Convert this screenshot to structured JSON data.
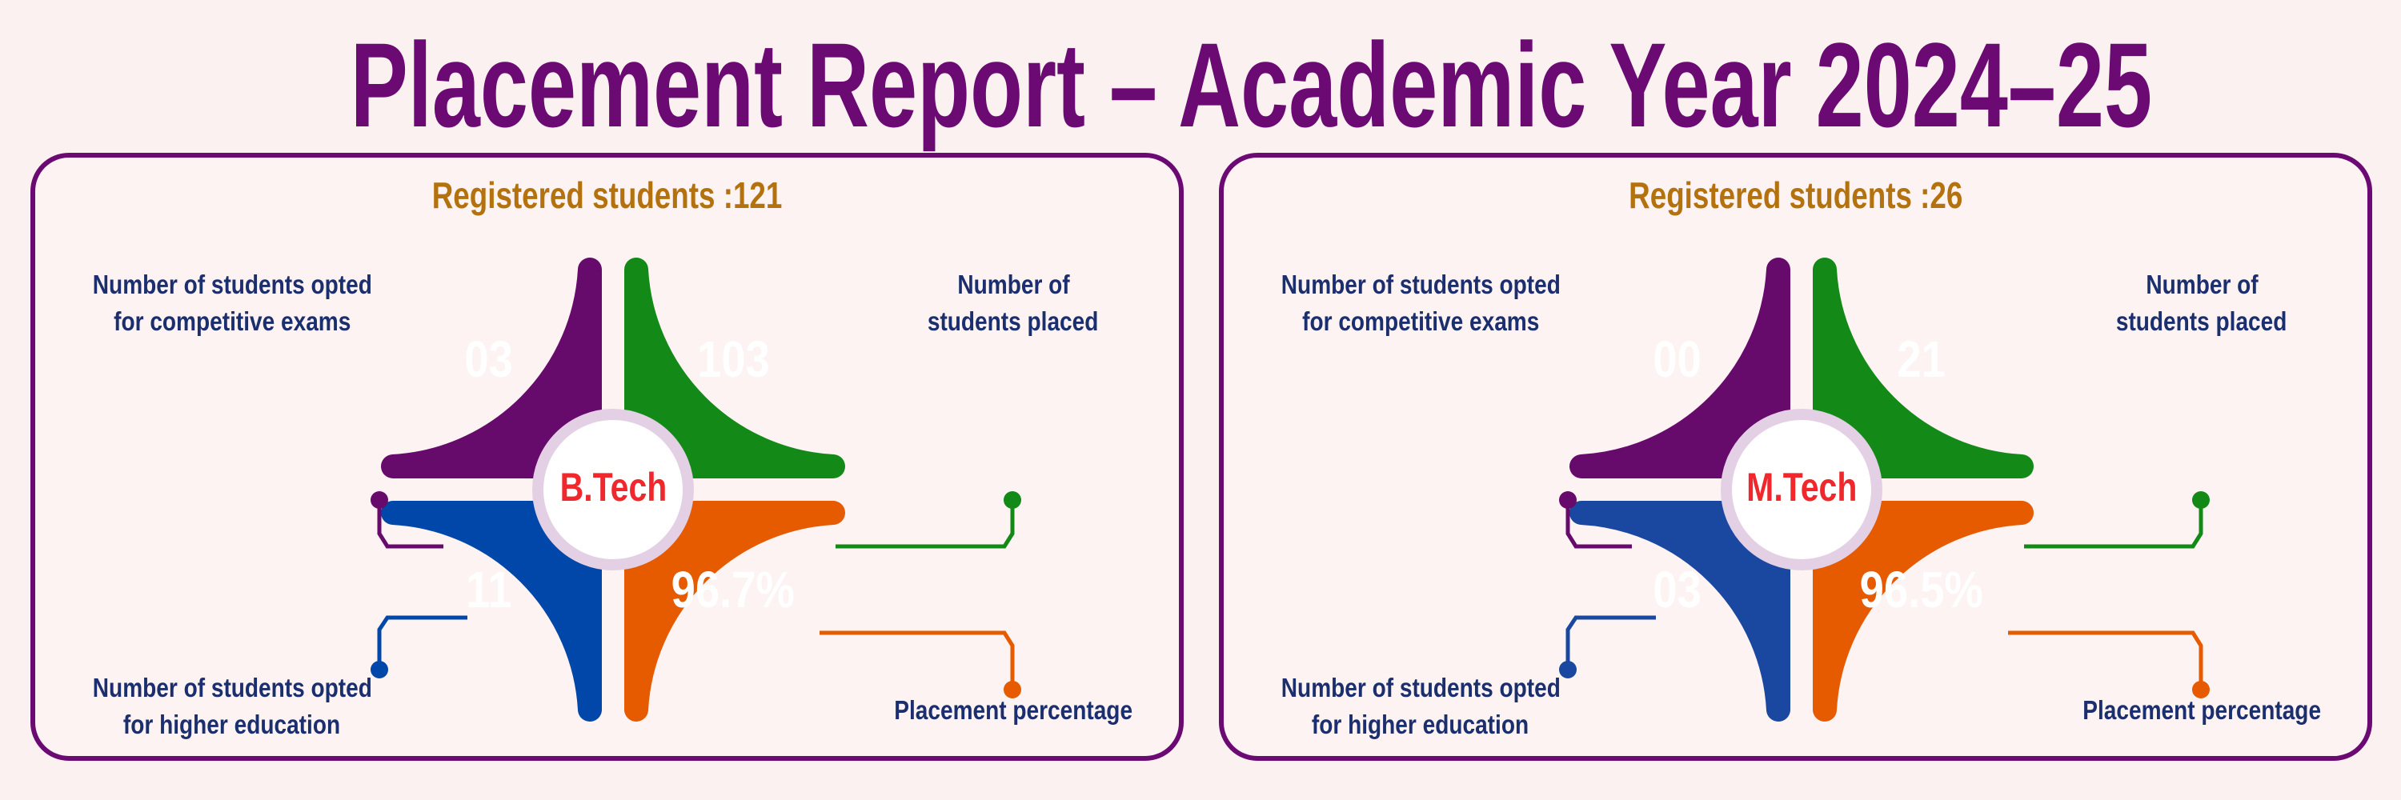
{
  "title": "Placement Report – Academic Year 2024–25",
  "colors": {
    "competitive": "#660a6c",
    "placed": "#138a17",
    "higher": "#0047aa",
    "percentage": "#e65a00",
    "title": "#6a0a72",
    "registered": "#b4720e",
    "program": "#f0282d",
    "label": "#1b2e6e"
  },
  "panels": [
    {
      "registered": "Registered students :121",
      "program": "B.Tech",
      "competitive": {
        "value": "03",
        "label1": "Number of students opted",
        "label2": "for competitive exams"
      },
      "placed": {
        "value": "103",
        "label1": "Number of",
        "label2": "students placed"
      },
      "higher": {
        "value": "11",
        "label1": "Number of students opted",
        "label2": "for higher education",
        "color": "#0047aa"
      },
      "percentage": {
        "value": "96.7%",
        "label1": "Placement percentage"
      }
    },
    {
      "registered": "Registered students :26",
      "program": "M.Tech",
      "competitive": {
        "value": "00",
        "label1": "Number of students opted",
        "label2": "for competitive exams"
      },
      "placed": {
        "value": "21",
        "label1": "Number of",
        "label2": "students placed"
      },
      "higher": {
        "value": "03",
        "label1": "Number of students opted",
        "label2": "for higher education",
        "color": "#1a47a0"
      },
      "percentage": {
        "value": "96.5%",
        "label1": "Placement percentage"
      }
    }
  ]
}
